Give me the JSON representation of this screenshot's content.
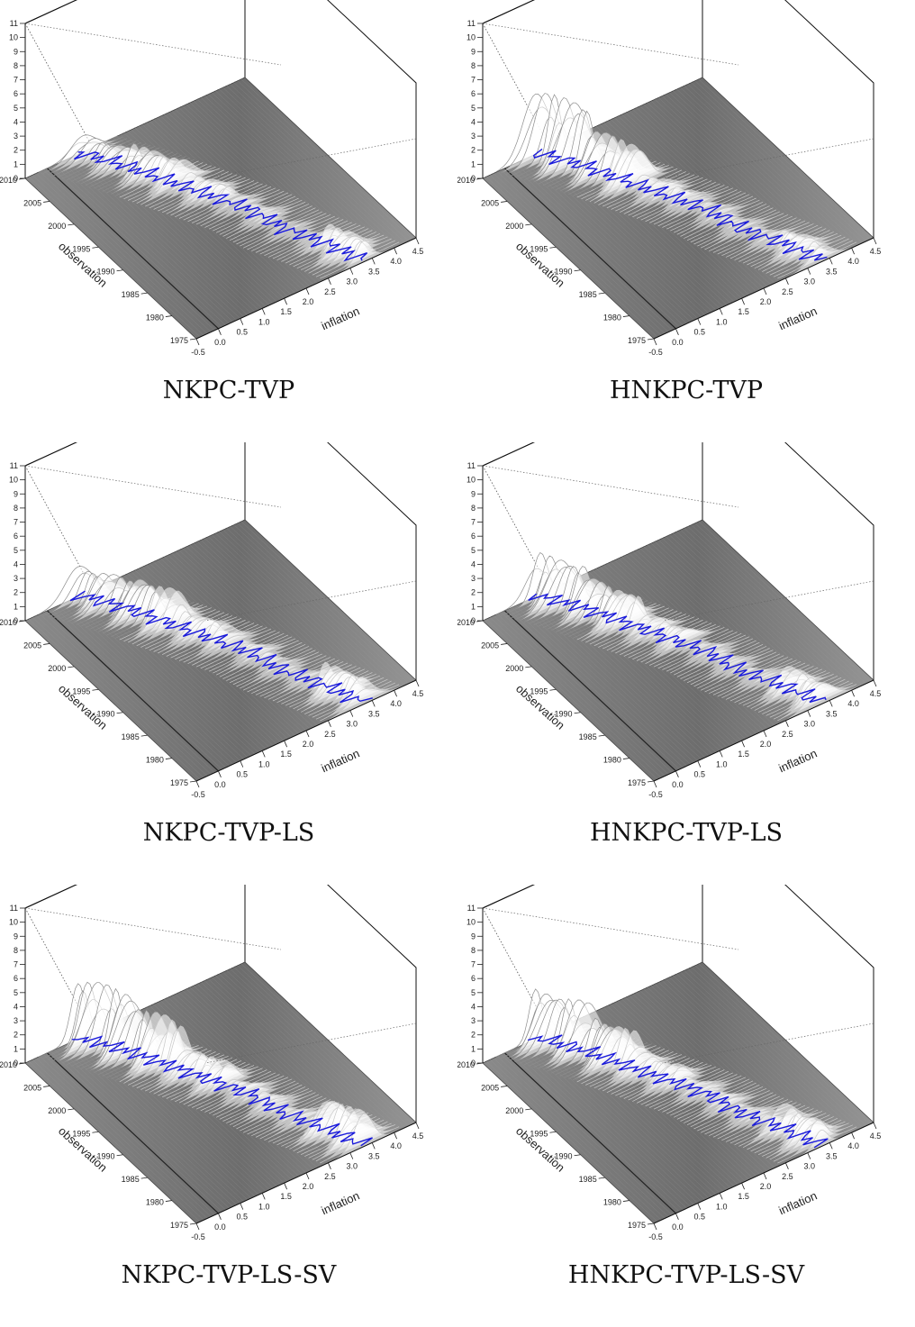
{
  "panels": [
    {
      "id": "nkpc-tvp",
      "title": "NKPC-TVP",
      "ridge_heights": [
        1.4,
        1.9,
        1.2,
        0.6,
        0.4,
        1.6
      ]
    },
    {
      "id": "hnkpc-tvp",
      "title": "HNKPC-TVP",
      "ridge_heights": [
        4.6,
        3.0,
        1.0,
        0.6,
        0.5,
        1.2
      ]
    },
    {
      "id": "nkpc-tvp-ls",
      "title": "NKPC-TVP-LS",
      "ridge_heights": [
        2.2,
        2.6,
        1.4,
        0.7,
        0.5,
        1.8
      ]
    },
    {
      "id": "hnkpc-tvp-ls",
      "title": "HNKPC-TVP-LS",
      "ridge_heights": [
        3.2,
        2.4,
        1.2,
        0.6,
        0.5,
        1.6
      ]
    },
    {
      "id": "nkpc-tvp-ls-sv",
      "title": "NKPC-TVP-LS-SV",
      "ridge_heights": [
        4.4,
        3.6,
        1.8,
        0.8,
        0.6,
        2.4
      ]
    },
    {
      "id": "hnkpc-tvp-ls-sv",
      "title": "HNKPC-TVP-LS-SV",
      "ridge_heights": [
        3.6,
        2.8,
        1.4,
        0.7,
        0.6,
        1.8
      ]
    }
  ],
  "chart_data": {
    "type": "surface",
    "x_axis": {
      "label": "inflation",
      "ticks": [
        "-0.5",
        "0.0",
        "0.5",
        "1.0",
        "1.5",
        "2.0",
        "2.5",
        "3.0",
        "3.5",
        "4.0",
        "4.5"
      ],
      "range": [
        -0.5,
        4.5
      ]
    },
    "y_axis": {
      "label": "observation",
      "ticks": [
        "1975",
        "1980",
        "1985",
        "1990",
        "1995",
        "2000",
        "2005",
        "2010"
      ],
      "range": [
        1975,
        2010
      ]
    },
    "z_axis": {
      "label": "",
      "ticks": [
        "0",
        "1",
        "2",
        "3",
        "4",
        "5",
        "6",
        "7",
        "8",
        "9",
        "10",
        "11"
      ],
      "range": [
        0,
        11
      ]
    },
    "mean_path": {
      "observation": [
        2010,
        2005,
        2000,
        1995,
        1990,
        1985,
        1980,
        1975
      ],
      "inflation": [
        0.7,
        1.2,
        1.6,
        2.0,
        2.4,
        2.6,
        3.0,
        3.3
      ]
    },
    "colors": {
      "density": "#ffffff",
      "mean_path": "#1a1adb",
      "floor": "#7f7f7f",
      "ridge": "#9a9a9a"
    }
  }
}
